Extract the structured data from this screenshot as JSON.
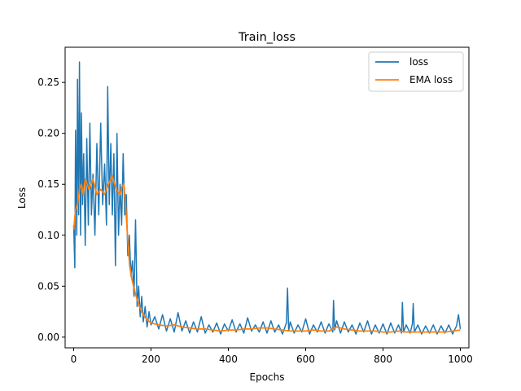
{
  "chart_data": {
    "type": "line",
    "title": "Train_loss",
    "xlabel": "Epochs",
    "ylabel": "Loss",
    "xlim": [
      -22,
      1022
    ],
    "ylim": [
      -0.0105,
      0.2845
    ],
    "xticks": [
      0,
      200,
      400,
      600,
      800,
      1000
    ],
    "xtick_labels": [
      "0",
      "200",
      "400",
      "600",
      "800",
      "1000"
    ],
    "yticks": [
      0.0,
      0.05,
      0.1,
      0.15,
      0.2,
      0.25
    ],
    "ytick_labels": [
      "0.00",
      "0.05",
      "0.10",
      "0.15",
      "0.20",
      "0.25"
    ],
    "legend_position": "top-right",
    "grid": false,
    "series": [
      {
        "name": "loss",
        "color": "#1f77b4",
        "x": [
          0,
          3,
          5,
          8,
          10,
          13,
          15,
          18,
          20,
          23,
          26,
          30,
          34,
          38,
          42,
          46,
          50,
          55,
          60,
          65,
          70,
          75,
          80,
          85,
          88,
          92,
          96,
          100,
          104,
          108,
          112,
          116,
          120,
          124,
          128,
          132,
          136,
          140,
          144,
          148,
          152,
          156,
          160,
          164,
          168,
          172,
          176,
          180,
          185,
          190,
          195,
          200,
          210,
          220,
          230,
          240,
          250,
          260,
          270,
          280,
          290,
          300,
          310,
          320,
          330,
          340,
          350,
          360,
          370,
          380,
          390,
          400,
          410,
          420,
          430,
          440,
          450,
          460,
          470,
          480,
          490,
          500,
          510,
          520,
          530,
          540,
          550,
          553,
          556,
          560,
          570,
          580,
          590,
          600,
          610,
          620,
          630,
          640,
          650,
          660,
          670,
          672,
          675,
          680,
          690,
          700,
          710,
          720,
          730,
          740,
          750,
          760,
          770,
          780,
          790,
          800,
          810,
          820,
          830,
          840,
          848,
          850,
          853,
          860,
          870,
          876,
          878,
          881,
          890,
          900,
          910,
          920,
          930,
          940,
          950,
          960,
          970,
          980,
          990,
          995,
          1000
        ],
        "y": [
          0.11,
          0.068,
          0.203,
          0.1,
          0.253,
          0.12,
          0.27,
          0.1,
          0.22,
          0.13,
          0.18,
          0.09,
          0.195,
          0.11,
          0.21,
          0.12,
          0.16,
          0.1,
          0.19,
          0.12,
          0.21,
          0.13,
          0.17,
          0.11,
          0.246,
          0.13,
          0.19,
          0.12,
          0.18,
          0.07,
          0.2,
          0.1,
          0.15,
          0.11,
          0.18,
          0.12,
          0.14,
          0.08,
          0.1,
          0.06,
          0.075,
          0.04,
          0.115,
          0.03,
          0.05,
          0.02,
          0.04,
          0.015,
          0.03,
          0.01,
          0.025,
          0.012,
          0.02,
          0.008,
          0.022,
          0.006,
          0.018,
          0.005,
          0.024,
          0.006,
          0.016,
          0.004,
          0.015,
          0.005,
          0.02,
          0.004,
          0.012,
          0.005,
          0.014,
          0.003,
          0.013,
          0.006,
          0.017,
          0.005,
          0.013,
          0.004,
          0.019,
          0.006,
          0.012,
          0.005,
          0.015,
          0.004,
          0.016,
          0.005,
          0.012,
          0.003,
          0.014,
          0.048,
          0.006,
          0.015,
          0.004,
          0.012,
          0.005,
          0.018,
          0.003,
          0.012,
          0.005,
          0.015,
          0.004,
          0.013,
          0.005,
          0.036,
          0.007,
          0.016,
          0.004,
          0.015,
          0.005,
          0.012,
          0.003,
          0.014,
          0.005,
          0.016,
          0.003,
          0.012,
          0.004,
          0.013,
          0.003,
          0.014,
          0.004,
          0.012,
          0.004,
          0.034,
          0.005,
          0.012,
          0.004,
          0.013,
          0.033,
          0.005,
          0.012,
          0.003,
          0.011,
          0.004,
          0.012,
          0.003,
          0.011,
          0.004,
          0.012,
          0.003,
          0.011,
          0.022,
          0.008
        ]
      },
      {
        "name": "EMA loss",
        "color": "#ff7f0e",
        "x": [
          0,
          5,
          10,
          15,
          20,
          25,
          30,
          40,
          50,
          60,
          70,
          80,
          90,
          100,
          110,
          120,
          125,
          130,
          135,
          140,
          145,
          150,
          155,
          160,
          170,
          180,
          190,
          200,
          220,
          240,
          260,
          280,
          300,
          320,
          340,
          360,
          380,
          400,
          420,
          440,
          460,
          480,
          500,
          520,
          540,
          560,
          580,
          600,
          620,
          640,
          660,
          680,
          700,
          720,
          740,
          760,
          780,
          800,
          820,
          840,
          860,
          880,
          900,
          920,
          940,
          960,
          980,
          1000
        ],
        "y": [
          0.105,
          0.125,
          0.13,
          0.145,
          0.15,
          0.14,
          0.155,
          0.145,
          0.155,
          0.14,
          0.145,
          0.14,
          0.15,
          0.158,
          0.145,
          0.14,
          0.148,
          0.15,
          0.125,
          0.095,
          0.07,
          0.058,
          0.05,
          0.042,
          0.03,
          0.022,
          0.017,
          0.014,
          0.012,
          0.011,
          0.012,
          0.01,
          0.009,
          0.008,
          0.008,
          0.007,
          0.006,
          0.007,
          0.007,
          0.008,
          0.008,
          0.009,
          0.009,
          0.008,
          0.007,
          0.006,
          0.006,
          0.006,
          0.007,
          0.006,
          0.006,
          0.01,
          0.008,
          0.007,
          0.006,
          0.006,
          0.006,
          0.005,
          0.005,
          0.006,
          0.005,
          0.005,
          0.005,
          0.005,
          0.005,
          0.005,
          0.006,
          0.007
        ]
      }
    ]
  }
}
